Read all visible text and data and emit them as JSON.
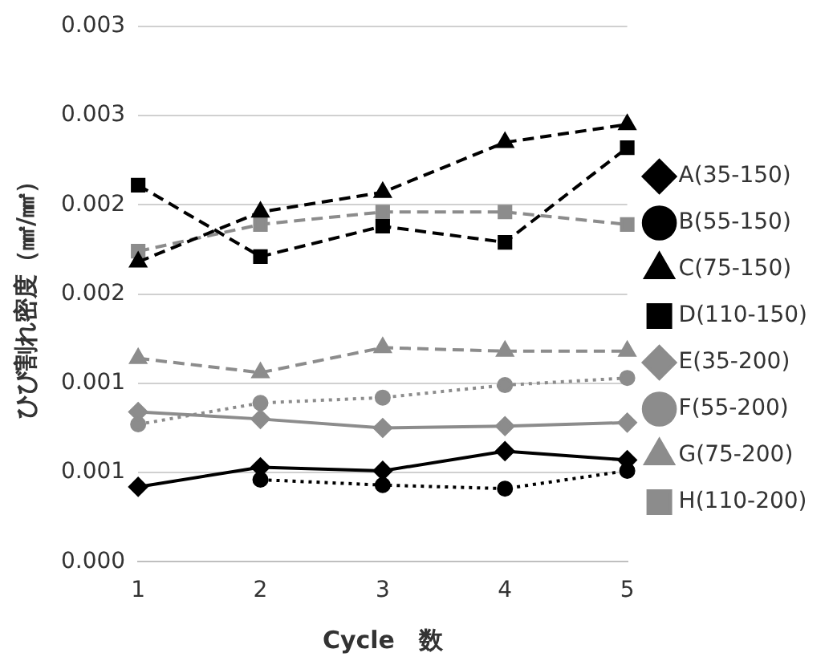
{
  "chart_data": {
    "type": "line",
    "xlabel": "Cycle　数",
    "ylabel": "ひび割れ密度（㎟/㎟）",
    "categories": [
      "1",
      "2",
      "3",
      "4",
      "5"
    ],
    "ylim": [
      0,
      0.003
    ],
    "yticks": [
      {
        "value": 0,
        "label": "0.000"
      },
      {
        "value": 0.0005,
        "label": "0.001"
      },
      {
        "value": 0.001,
        "label": "0.001"
      },
      {
        "value": 0.0015,
        "label": "0.002"
      },
      {
        "value": 0.002,
        "label": "0.002"
      },
      {
        "value": 0.0025,
        "label": "0.003"
      },
      {
        "value": 0.003,
        "label": "0.003"
      }
    ],
    "grid": "y",
    "legend": "right",
    "series": [
      {
        "name": "A(35-150)",
        "color": "#000000",
        "marker": "diamond",
        "line_style": "solid",
        "values": [
          0.00042,
          0.00053,
          0.00051,
          0.00062,
          0.00057
        ]
      },
      {
        "name": "B(55-150)",
        "color": "#000000",
        "marker": "circle",
        "line_style": "dotted",
        "values": [
          null,
          0.00046,
          0.00043,
          0.00041,
          0.00051
        ]
      },
      {
        "name": "C(75-150)",
        "color": "#000000",
        "marker": "triangle",
        "line_style": "dashed",
        "values": [
          0.00168,
          0.00196,
          0.00207,
          0.00235,
          0.00245
        ]
      },
      {
        "name": "D(110-150)",
        "color": "#000000",
        "marker": "square",
        "line_style": "dashed",
        "values": [
          0.00211,
          0.00171,
          0.00188,
          0.00179,
          0.00232
        ]
      },
      {
        "name": "E(35-200)",
        "color": "#8c8c8c",
        "marker": "diamond",
        "line_style": "solid",
        "values": [
          0.00084,
          0.0008,
          0.00075,
          0.00076,
          0.00078
        ]
      },
      {
        "name": "F(55-200)",
        "color": "#8c8c8c",
        "marker": "circle",
        "line_style": "dotted",
        "values": [
          0.00077,
          0.00089,
          0.00092,
          0.00099,
          0.00103
        ]
      },
      {
        "name": "G(75-200)",
        "color": "#8c8c8c",
        "marker": "triangle",
        "line_style": "dashed",
        "values": [
          0.00114,
          0.00106,
          0.0012,
          0.00118,
          0.00118
        ]
      },
      {
        "name": "H(110-200)",
        "color": "#8c8c8c",
        "marker": "square",
        "line_style": "dashed",
        "values": [
          0.00174,
          0.00189,
          0.00196,
          0.00196,
          0.00189
        ]
      }
    ]
  }
}
